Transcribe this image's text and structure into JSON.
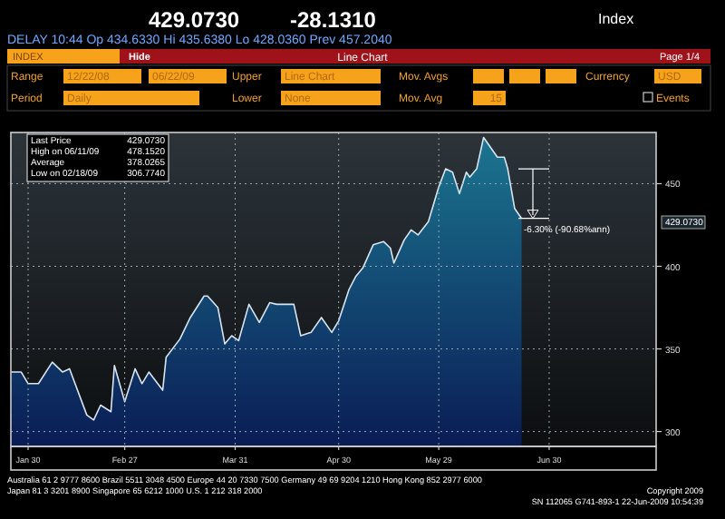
{
  "chart_data": {
    "type": "area",
    "title": "Line Chart",
    "x": [
      "2009-01-25",
      "2009-01-28",
      "2009-01-30",
      "2009-02-02",
      "2009-02-06",
      "2009-02-09",
      "2009-02-11",
      "2009-02-16",
      "2009-02-18",
      "2009-02-20",
      "2009-02-23",
      "2009-02-24",
      "2009-02-27",
      "2009-03-02",
      "2009-03-04",
      "2009-03-06",
      "2009-03-10",
      "2009-03-11",
      "2009-03-15",
      "2009-03-18",
      "2009-03-22",
      "2009-03-23",
      "2009-03-26",
      "2009-03-28",
      "2009-03-30",
      "2009-04-01",
      "2009-04-04",
      "2009-04-07",
      "2009-04-10",
      "2009-04-12",
      "2009-04-17",
      "2009-04-19",
      "2009-04-22",
      "2009-04-25",
      "2009-04-28",
      "2009-04-30",
      "2009-05-03",
      "2009-05-05",
      "2009-05-07",
      "2009-05-10",
      "2009-05-13",
      "2009-05-15",
      "2009-05-16",
      "2009-05-19",
      "2009-05-21",
      "2009-05-23",
      "2009-05-26",
      "2009-05-29",
      "2009-05-31",
      "2009-06-02",
      "2009-06-04",
      "2009-06-06",
      "2009-06-07",
      "2009-06-09",
      "2009-06-11",
      "2009-06-15",
      "2009-06-17",
      "2009-06-18",
      "2009-06-20",
      "2009-06-22"
    ],
    "series": [
      {
        "color": "#1b7590",
        "values": [
          336,
          336,
          329,
          329,
          342,
          336,
          338,
          310,
          307,
          316,
          312,
          340,
          318,
          338,
          329,
          336,
          325,
          345,
          356,
          369,
          382,
          382,
          375,
          353,
          358,
          355,
          377,
          366,
          378,
          377,
          377,
          358,
          360,
          369,
          360,
          367,
          386,
          394,
          399,
          413,
          415,
          411,
          402,
          416,
          422,
          419,
          427,
          448,
          459,
          457,
          444,
          457,
          454,
          459,
          478,
          466,
          466,
          459,
          435,
          429
        ]
      }
    ],
    "xlim": [
      "2009-01-25",
      "2009-07-31"
    ],
    "xticks": [
      {
        "value": "2009-01-30",
        "label": "Jan 30"
      },
      {
        "value": "2009-02-27",
        "label": "Feb 27"
      },
      {
        "value": "2009-03-31",
        "label": "Mar 31"
      },
      {
        "value": "2009-04-30",
        "label": "Apr 30"
      },
      {
        "value": "2009-05-29",
        "label": "May 29"
      },
      {
        "value": "2009-06-30",
        "label": "Jun 30"
      }
    ],
    "ylim": [
      291,
      481
    ],
    "yticks": [
      300,
      350,
      400,
      450
    ],
    "grid": true,
    "annotations": [
      "429.0730",
      "-28.1310",
      "Index",
      "DELAY 10:44 Op 434.6330 Hi 435.6380 Lo 428.0360 Prev 457.2040",
      "INDEX",
      "Hide",
      "Page 1/4",
      "Range",
      "12/22/08",
      "06/22/09",
      "Upper",
      "Line Chart",
      "Mov. Avgs",
      "Currency",
      "USD",
      "Period",
      "Daily",
      "Lower",
      "None",
      "Mov. Avg",
      "15",
      "Events",
      "Last Price",
      "429.0730",
      "High on 06/11/09",
      "478.1520",
      "Average",
      "378.0265",
      "Low on 02/18/09",
      "306.7740",
      "-6.30% (-90.68%ann)",
      "429.0730",
      "Australia 61 2 9777 8600 Brazil 5511 3048 4500 Europe 44 20 7330 7500 Germany 49 69 9204 1210 Hong Kong 852 2977 6000",
      "Japan 81 3 3201 8900 Singapore 65 6212 1000 U.S. 1 212 318 2000",
      "Copyright 2009",
      "SN 112065 G741-893-1 22-Jun-2009 10:54:39"
    ]
  }
}
